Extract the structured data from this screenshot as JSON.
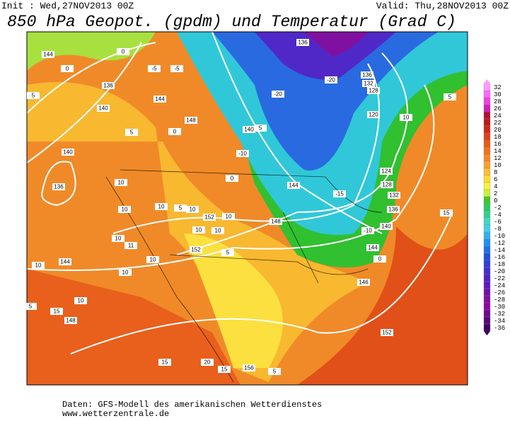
{
  "header": {
    "init": "Init : Wed,27NOV2013 00Z",
    "valid": "Valid: Thu,28NOV2013 00Z",
    "title": "850 hPa Geopot. (gpdm) und Temperatur (Grad C)"
  },
  "colorbar": {
    "ticks": [
      32,
      30,
      28,
      26,
      24,
      22,
      20,
      18,
      16,
      14,
      12,
      10,
      8,
      6,
      4,
      2,
      0,
      -2,
      -4,
      -6,
      -8,
      -10,
      -12,
      -14,
      -16,
      -18,
      -20,
      -22,
      -24,
      -26,
      -28,
      -30,
      -32,
      -34,
      -36
    ],
    "colors": [
      "#ff9cff",
      "#ff66ff",
      "#f040e0",
      "#d020b8",
      "#b0103a",
      "#c01818",
      "#d02818",
      "#e04018",
      "#e85a18",
      "#f07020",
      "#f48828",
      "#f8a030",
      "#fcc030",
      "#fcdc30",
      "#f8f040",
      "#c8f040",
      "#40c828",
      "#30c860",
      "#30d090",
      "#40d8c0",
      "#40d0e8",
      "#30b0f0",
      "#2090f0",
      "#2070e8",
      "#2050e0",
      "#3040d8",
      "#4030d0",
      "#5020c8",
      "#6018c0",
      "#7010b0",
      "#8010a0",
      "#9008a0",
      "#700890",
      "#580878",
      "#400060"
    ]
  },
  "map": {
    "labels": [
      "144",
      "0",
      "136",
      "140",
      "5",
      "140",
      "136",
      "144",
      "5",
      "0",
      "148",
      "-5",
      "-5",
      "0",
      "136",
      "-20",
      "-20",
      "136",
      "132",
      "128",
      "120",
      "10",
      "5",
      "140",
      "5",
      "-10",
      "0",
      "144",
      "-15",
      "124",
      "128",
      "132",
      "136",
      "-10",
      "140",
      "144",
      "0",
      "148",
      "146",
      "5",
      "152",
      "152",
      "10",
      "10",
      "10",
      "5",
      "10",
      "10",
      "10",
      "10",
      "10",
      "11",
      "10",
      "10",
      "10",
      "144",
      "10",
      "5",
      "15",
      "148",
      "152",
      "15",
      "156",
      "5",
      "15",
      "15",
      "20"
    ]
  },
  "footer": {
    "source": "Daten: GFS-Modell des amerikanischen Wetterdienstes",
    "site": "www.wetterzentrale.de"
  }
}
